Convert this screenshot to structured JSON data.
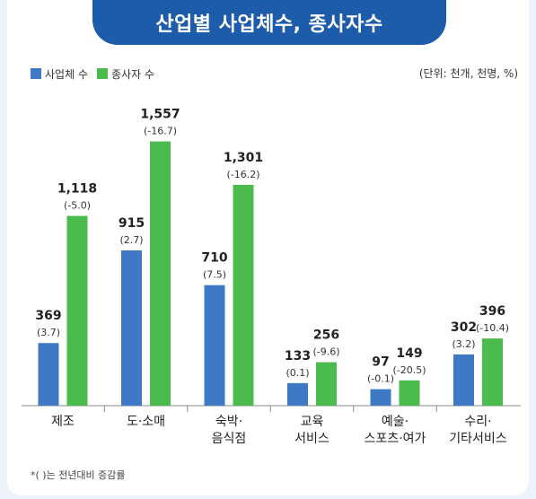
{
  "title": "산업별 사업체수, 종사자수",
  "unit_note": "(단위: 천개, 천명, %)",
  "footnote": "*(   )는 전년대비 증감률",
  "colors": {
    "business": "#3f78c4",
    "workers": "#4cbb4d",
    "title_bg": "#1d5bab"
  },
  "chart_data": {
    "type": "bar",
    "categories": [
      [
        "제조"
      ],
      [
        "도·소매"
      ],
      [
        "숙박·",
        "음식점"
      ],
      [
        "교육",
        "서비스"
      ],
      [
        "예술·",
        "스포츠·여가"
      ],
      [
        "수리·",
        "기타서비스"
      ]
    ],
    "series": [
      {
        "name": "사업체 수",
        "values": [
          369,
          915,
          710,
          133,
          97,
          302
        ],
        "value_labels": [
          "369",
          "915",
          "710",
          "133",
          "97",
          "302"
        ],
        "change_labels": [
          "(3.7)",
          "(2.7)",
          "(7.5)",
          "(0.1)",
          "(-0.1)",
          "(3.2)"
        ]
      },
      {
        "name": "종사자 수",
        "values": [
          1118,
          1557,
          1301,
          256,
          149,
          396
        ],
        "value_labels": [
          "1,118",
          "1,557",
          "1,301",
          "256",
          "149",
          "396"
        ],
        "change_labels": [
          "(-5.0)",
          "(-16.7)",
          "(-16.2)",
          "(-9.6)",
          "(-20.5)",
          "(-10.4)"
        ]
      }
    ],
    "ylim": [
      0,
      1650
    ],
    "grid": false,
    "legend_position": "top-left"
  }
}
